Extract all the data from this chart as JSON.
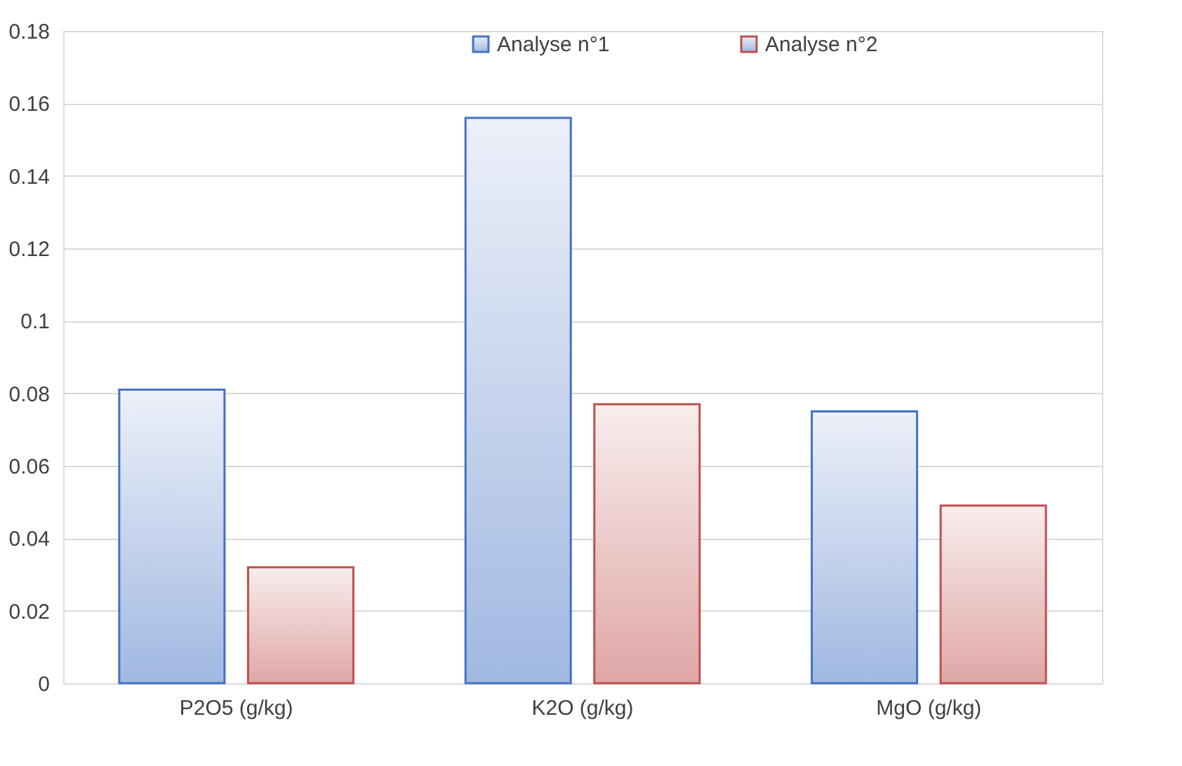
{
  "chart_data": {
    "type": "bar",
    "categories": [
      "P2O5 (g/kg)",
      "K2O (g/kg)",
      "MgO (g/kg)"
    ],
    "series": [
      {
        "name": "Analyse n°1",
        "color": "#4472c4",
        "values": [
          0.081,
          0.156,
          0.075
        ]
      },
      {
        "name": "Analyse n°2",
        "color": "#c0504d",
        "values": [
          0.032,
          0.077,
          0.049
        ]
      }
    ],
    "ylim": [
      0,
      0.18
    ],
    "yticks": [
      0,
      0.02,
      0.04,
      0.06,
      0.08,
      0.1,
      0.12,
      0.14,
      0.16,
      0.18
    ],
    "grid": "y",
    "legend": "top"
  }
}
